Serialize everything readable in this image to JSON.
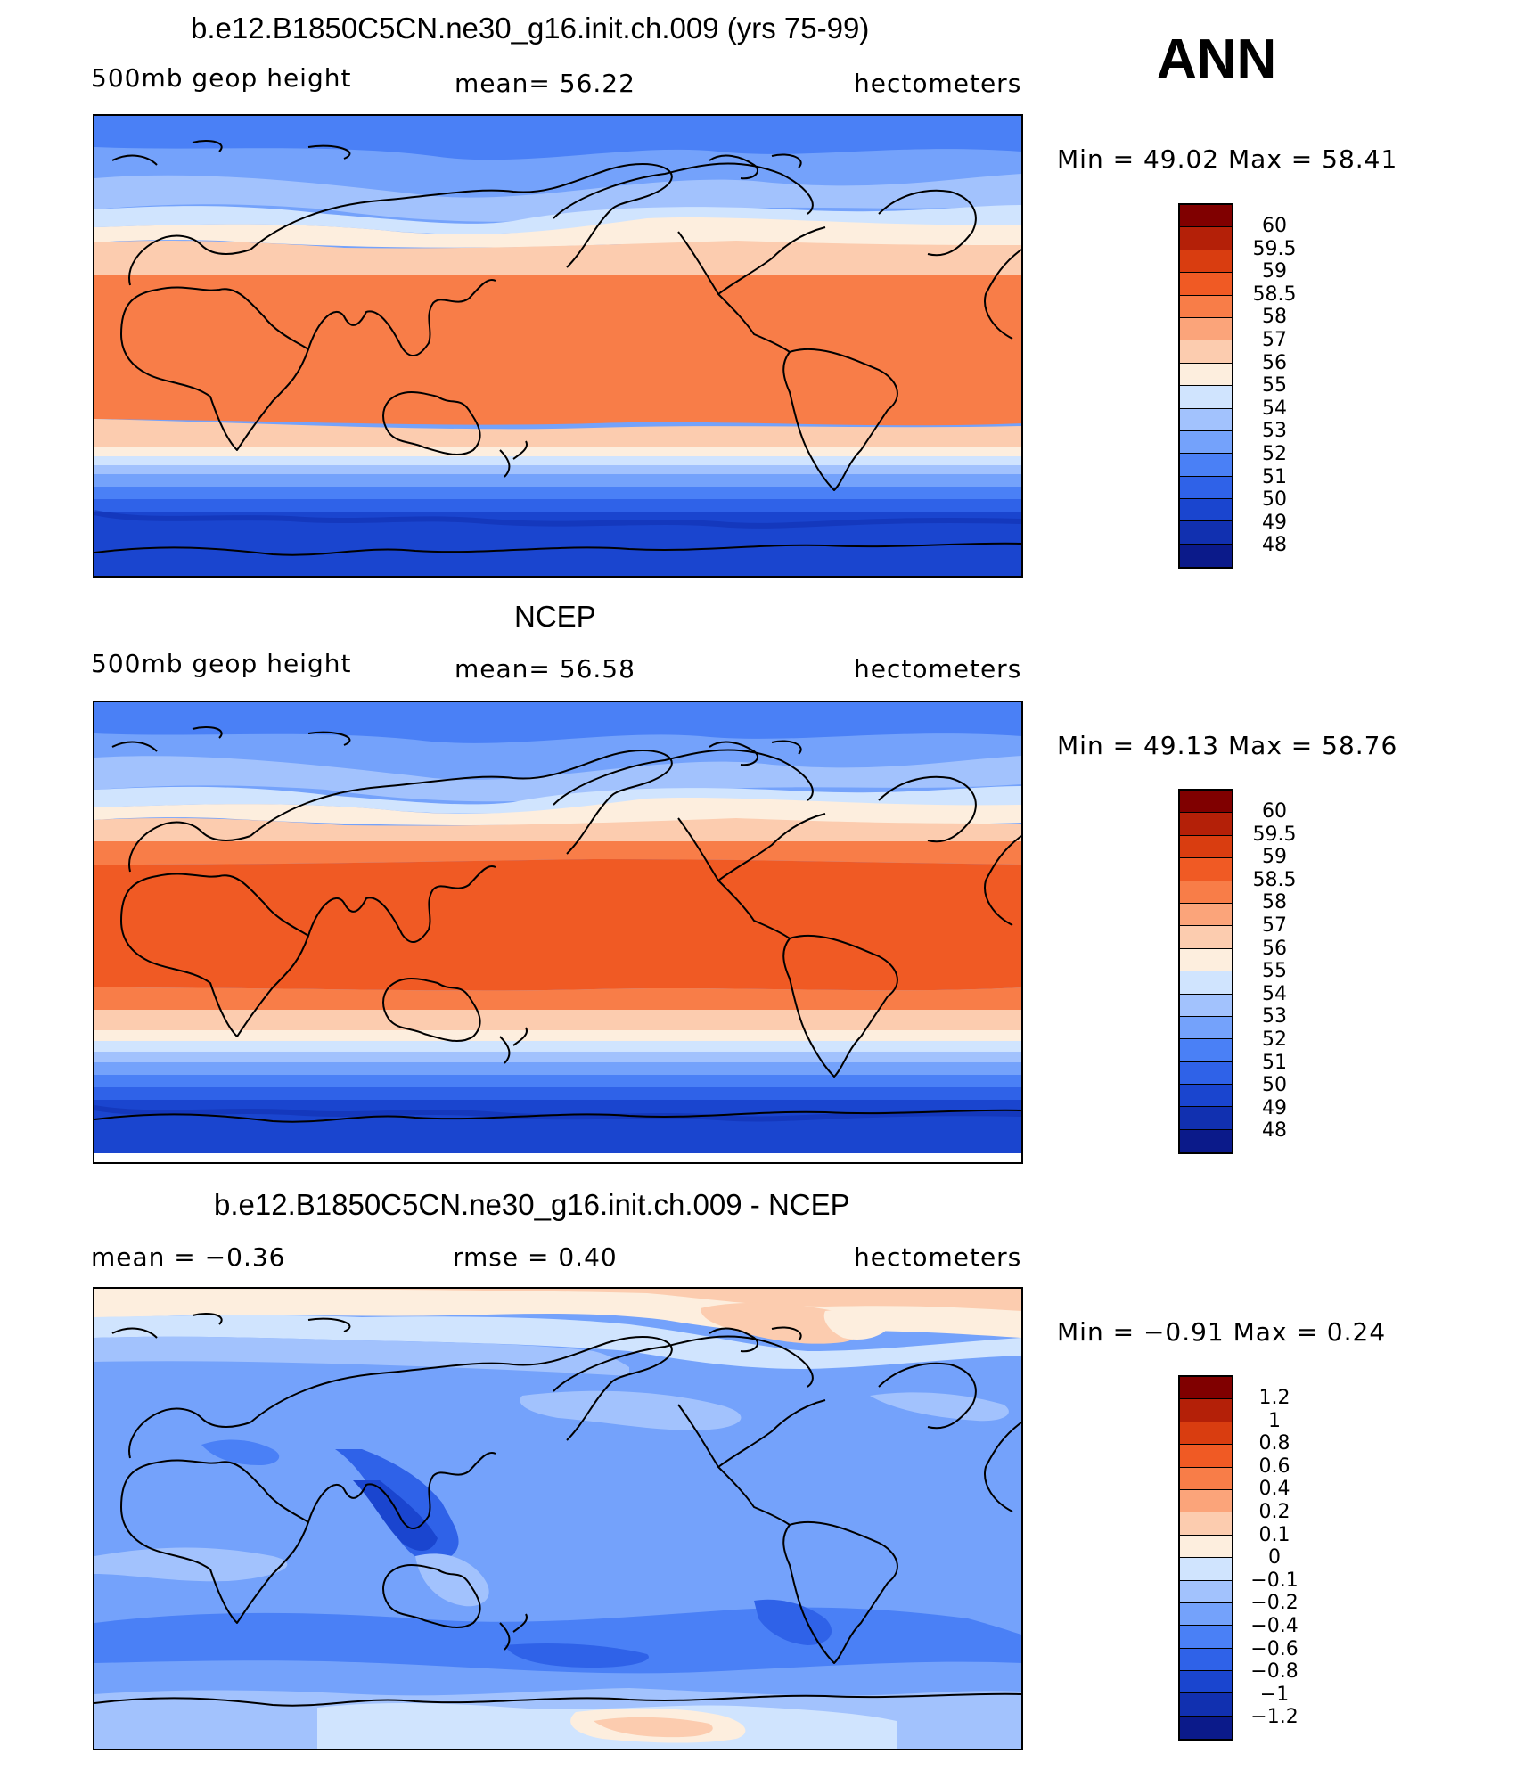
{
  "season": "ANN",
  "colors": {
    "abs": [
      "#0b1a8a",
      "#1130b0",
      "#1a45cf",
      "#2f62e8",
      "#4a80f6",
      "#74a2fb",
      "#a2c2fd",
      "#d0e4fe",
      "#fdeede",
      "#fcccaf",
      "#fba47a",
      "#f87d48",
      "#f05a24",
      "#d93d10",
      "#b42008",
      "#800000"
    ],
    "diff": [
      "#0b1a8a",
      "#1130b0",
      "#1a45cf",
      "#2f62e8",
      "#4a80f6",
      "#74a2fb",
      "#a2c2fd",
      "#d0e4fe",
      "#fdeede",
      "#fcccaf",
      "#fba47a",
      "#f87d48",
      "#f05a24",
      "#d93d10",
      "#b42008",
      "#800000"
    ]
  },
  "panels": [
    {
      "title": "b.e12.B1850C5CN.ne30_g16.init.ch.009 (yrs 75-99)",
      "left": "500mb geop height",
      "center": "mean=   56.22",
      "right": "hectometers",
      "minmax": "Min =    49.02  Max =    58.41",
      "levels": [
        "60",
        "59.5",
        "59",
        "58.5",
        "58",
        "57",
        "56",
        "55",
        "54",
        "53",
        "52",
        "51",
        "50",
        "49",
        "48"
      ]
    },
    {
      "title": "NCEP",
      "left": "500mb geop height",
      "center": "mean=   56.58",
      "right": "hectometers",
      "minmax": "Min =    49.13  Max =    58.76",
      "levels": [
        "60",
        "59.5",
        "59",
        "58.5",
        "58",
        "57",
        "56",
        "55",
        "54",
        "53",
        "52",
        "51",
        "50",
        "49",
        "48"
      ]
    },
    {
      "title": "b.e12.B1850C5CN.ne30_g16.init.ch.009 - NCEP",
      "left": "mean =   −0.36",
      "center": "rmse =    0.40",
      "right": "hectometers",
      "minmax": "Min =   −0.91  Max =     0.24",
      "levels": [
        "1.2",
        "1",
        "0.8",
        "0.6",
        "0.4",
        "0.2",
        "0.1",
        "0",
        "−0.1",
        "−0.2",
        "−0.4",
        "−0.6",
        "−0.8",
        "−1",
        "−1.2"
      ]
    }
  ]
}
